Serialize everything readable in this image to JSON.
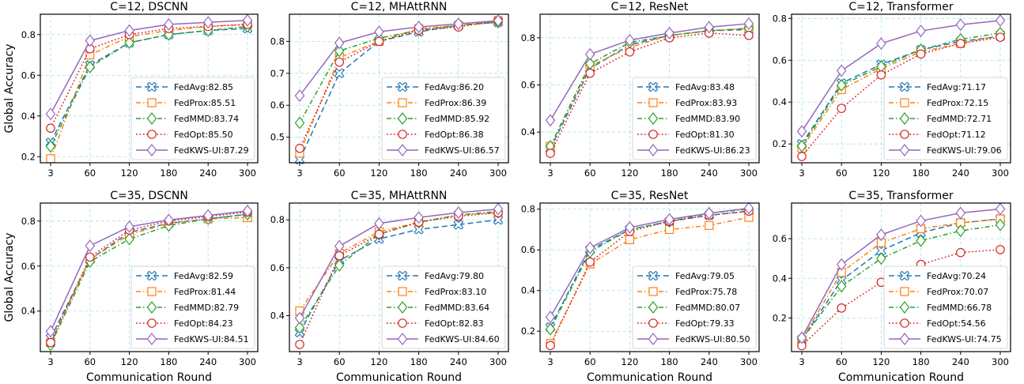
{
  "chart_data": [
    {
      "type": "line",
      "title": "C=12, DSCNN",
      "x": [
        3,
        60,
        120,
        180,
        240,
        300
      ],
      "ylim": [
        0.17,
        0.9
      ],
      "yticks": [
        0.2,
        0.4,
        0.6,
        0.8
      ],
      "series": [
        {
          "name": "FedAvg:82.85",
          "values": [
            0.27,
            0.65,
            0.76,
            0.8,
            0.82,
            0.83
          ]
        },
        {
          "name": "FedProx:85.51",
          "values": [
            0.19,
            0.7,
            0.79,
            0.82,
            0.84,
            0.85
          ]
        },
        {
          "name": "FedMMD:83.74",
          "values": [
            0.25,
            0.64,
            0.76,
            0.8,
            0.82,
            0.84
          ]
        },
        {
          "name": "FedOpt:85.50",
          "values": [
            0.34,
            0.73,
            0.8,
            0.83,
            0.84,
            0.85
          ]
        },
        {
          "name": "FedKWS-UI:87.29",
          "values": [
            0.41,
            0.77,
            0.82,
            0.85,
            0.86,
            0.87
          ]
        }
      ]
    },
    {
      "type": "line",
      "title": "C=12, MHAttRNN",
      "x": [
        3,
        60,
        120,
        180,
        240,
        300
      ],
      "ylim": [
        0.42,
        0.885
      ],
      "yticks": [
        0.5,
        0.6,
        0.7,
        0.8
      ],
      "series": [
        {
          "name": "FedAvg:86.20",
          "values": [
            0.43,
            0.7,
            0.8,
            0.83,
            0.85,
            0.86
          ]
        },
        {
          "name": "FedProx:86.39",
          "values": [
            0.45,
            0.75,
            0.8,
            0.84,
            0.85,
            0.865
          ]
        },
        {
          "name": "FedMMD:85.92",
          "values": [
            0.545,
            0.77,
            0.81,
            0.835,
            0.85,
            0.86
          ]
        },
        {
          "name": "FedOpt:86.38",
          "values": [
            0.465,
            0.735,
            0.8,
            0.835,
            0.845,
            0.865
          ]
        },
        {
          "name": "FedKWS-UI:86.57",
          "values": [
            0.63,
            0.795,
            0.83,
            0.845,
            0.855,
            0.865
          ]
        }
      ]
    },
    {
      "type": "line",
      "title": "C=12, ResNet",
      "x": [
        3,
        60,
        120,
        180,
        240,
        300
      ],
      "ylim": [
        0.27,
        0.9
      ],
      "yticks": [
        0.4,
        0.6,
        0.8
      ],
      "series": [
        {
          "name": "FedAvg:83.48",
          "values": [
            0.33,
            0.67,
            0.77,
            0.81,
            0.83,
            0.835
          ]
        },
        {
          "name": "FedProx:83.93",
          "values": [
            0.34,
            0.68,
            0.76,
            0.81,
            0.83,
            0.84
          ]
        },
        {
          "name": "FedMMD:83.90",
          "values": [
            0.34,
            0.69,
            0.78,
            0.81,
            0.83,
            0.84
          ]
        },
        {
          "name": "FedOpt:81.30",
          "values": [
            0.31,
            0.65,
            0.74,
            0.8,
            0.82,
            0.81
          ]
        },
        {
          "name": "FedKWS-UI:86.23",
          "values": [
            0.45,
            0.73,
            0.79,
            0.82,
            0.845,
            0.86
          ]
        }
      ]
    },
    {
      "type": "line",
      "title": "C=12, Transformer",
      "x": [
        3,
        60,
        120,
        180,
        240,
        300
      ],
      "ylim": [
        0.11,
        0.82
      ],
      "yticks": [
        0.2,
        0.4,
        0.6,
        0.8
      ],
      "series": [
        {
          "name": "FedAvg:71.17",
          "values": [
            0.2,
            0.49,
            0.58,
            0.65,
            0.69,
            0.715
          ]
        },
        {
          "name": "FedProx:72.15",
          "values": [
            0.18,
            0.46,
            0.56,
            0.64,
            0.68,
            0.72
          ]
        },
        {
          "name": "FedMMD:72.71",
          "values": [
            0.19,
            0.48,
            0.57,
            0.65,
            0.7,
            0.73
          ]
        },
        {
          "name": "FedOpt:71.12",
          "values": [
            0.14,
            0.37,
            0.53,
            0.63,
            0.68,
            0.71
          ]
        },
        {
          "name": "FedKWS-UI:79.06",
          "values": [
            0.26,
            0.55,
            0.68,
            0.74,
            0.77,
            0.79
          ]
        }
      ]
    },
    {
      "type": "line",
      "title": "C=35, DSCNN",
      "x": [
        3,
        60,
        120,
        180,
        240,
        300
      ],
      "ylim": [
        0.22,
        0.88
      ],
      "yticks": [
        0.4,
        0.6,
        0.8
      ],
      "series": [
        {
          "name": "FedAvg:82.59",
          "values": [
            0.28,
            0.63,
            0.75,
            0.79,
            0.81,
            0.83
          ]
        },
        {
          "name": "FedProx:81.44",
          "values": [
            0.26,
            0.63,
            0.74,
            0.79,
            0.81,
            0.815
          ]
        },
        {
          "name": "FedMMD:82.79",
          "values": [
            0.25,
            0.62,
            0.72,
            0.78,
            0.81,
            0.83
          ]
        },
        {
          "name": "FedOpt:84.23",
          "values": [
            0.26,
            0.64,
            0.76,
            0.8,
            0.82,
            0.84
          ]
        },
        {
          "name": "FedKWS-UI:84.51",
          "values": [
            0.31,
            0.69,
            0.775,
            0.805,
            0.825,
            0.845
          ]
        }
      ]
    },
    {
      "type": "line",
      "title": "C=35, MHAttRNN",
      "x": [
        3,
        60,
        120,
        180,
        240,
        300
      ],
      "ylim": [
        0.25,
        0.87
      ],
      "yticks": [
        0.4,
        0.6,
        0.8
      ],
      "series": [
        {
          "name": "FedAvg:79.80",
          "values": [
            0.33,
            0.63,
            0.72,
            0.76,
            0.78,
            0.8
          ]
        },
        {
          "name": "FedProx:83.10",
          "values": [
            0.42,
            0.66,
            0.75,
            0.79,
            0.82,
            0.83
          ]
        },
        {
          "name": "FedMMD:83.64",
          "values": [
            0.35,
            0.61,
            0.74,
            0.79,
            0.82,
            0.835
          ]
        },
        {
          "name": "FedOpt:82.83",
          "values": [
            0.28,
            0.65,
            0.74,
            0.79,
            0.815,
            0.83
          ]
        },
        {
          "name": "FedKWS-UI:84.60",
          "values": [
            0.39,
            0.69,
            0.785,
            0.81,
            0.83,
            0.845
          ]
        }
      ]
    },
    {
      "type": "line",
      "title": "C=35, ResNet",
      "x": [
        3,
        60,
        120,
        180,
        240,
        300
      ],
      "ylim": [
        0.1,
        0.83
      ],
      "yticks": [
        0.2,
        0.4,
        0.6,
        0.8
      ],
      "series": [
        {
          "name": "FedAvg:79.05",
          "values": [
            0.22,
            0.6,
            0.7,
            0.74,
            0.77,
            0.79
          ]
        },
        {
          "name": "FedProx:75.78",
          "values": [
            0.14,
            0.53,
            0.65,
            0.7,
            0.72,
            0.76
          ]
        },
        {
          "name": "FedMMD:80.07",
          "values": [
            0.21,
            0.59,
            0.7,
            0.74,
            0.78,
            0.8
          ]
        },
        {
          "name": "FedOpt:79.33",
          "values": [
            0.13,
            0.54,
            0.69,
            0.74,
            0.77,
            0.79
          ]
        },
        {
          "name": "FedKWS-UI:80.50",
          "values": [
            0.27,
            0.61,
            0.71,
            0.75,
            0.78,
            0.805
          ]
        }
      ]
    },
    {
      "type": "line",
      "title": "C=35, Transformer",
      "x": [
        3,
        60,
        120,
        180,
        240,
        300
      ],
      "ylim": [
        0.03,
        0.78
      ],
      "yticks": [
        0.2,
        0.4,
        0.6
      ],
      "series": [
        {
          "name": "FedAvg:70.24",
          "values": [
            0.09,
            0.39,
            0.54,
            0.63,
            0.68,
            0.7
          ]
        },
        {
          "name": "FedProx:70.07",
          "values": [
            0.09,
            0.43,
            0.58,
            0.65,
            0.68,
            0.7
          ]
        },
        {
          "name": "FedMMD:66.78",
          "values": [
            0.09,
            0.36,
            0.5,
            0.59,
            0.64,
            0.67
          ]
        },
        {
          "name": "FedOpt:54.56",
          "values": [
            0.06,
            0.25,
            0.38,
            0.47,
            0.53,
            0.545
          ]
        },
        {
          "name": "FedKWS-UI:74.75",
          "values": [
            0.1,
            0.47,
            0.62,
            0.69,
            0.73,
            0.75
          ]
        }
      ]
    }
  ],
  "axes": {
    "xlabel": "Communication Round",
    "ylabel": "Global Accuracy"
  },
  "series_styles": [
    {
      "color": "#1f77b4",
      "marker": "X-mark",
      "line": "dashed"
    },
    {
      "color": "#ff7f0e",
      "marker": "square",
      "line": "dashdot"
    },
    {
      "color": "#2ca02c",
      "marker": "diamond",
      "line": "dashdot"
    },
    {
      "color": "#d62728",
      "marker": "circle",
      "line": "dotted"
    },
    {
      "color": "#9467bd",
      "marker": "diamond",
      "line": "solid"
    }
  ]
}
